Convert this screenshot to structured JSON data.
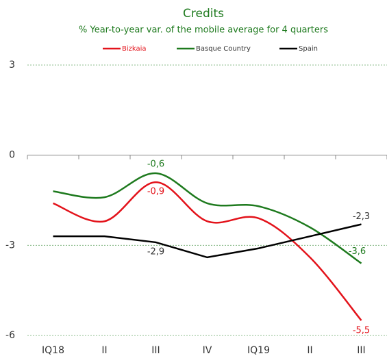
{
  "chart_data": {
    "type": "line",
    "title": "Credits",
    "subtitle": "% Year-to-year var. of the mobile average for 4 quarters",
    "categories": [
      "IQ18",
      "II",
      "III",
      "IV",
      "IQ19",
      "II",
      "III"
    ],
    "series": [
      {
        "name": "Bizkaia",
        "color": "#e3131b",
        "values": [
          -1.6,
          -2.2,
          -0.9,
          -2.2,
          -2.1,
          -3.4,
          -5.5
        ],
        "value_labels": [
          null,
          null,
          "-0,9",
          null,
          null,
          null,
          "-5,5"
        ]
      },
      {
        "name": "Basque Country",
        "color": "#1e7a1e",
        "values": [
          -1.2,
          -1.4,
          -0.6,
          -1.6,
          -1.7,
          -2.4,
          -3.6
        ],
        "value_labels": [
          null,
          null,
          "-0,6",
          null,
          null,
          null,
          "-3,6"
        ]
      },
      {
        "name": "Spain",
        "color": "#000000",
        "values": [
          -2.7,
          -2.7,
          -2.9,
          -3.4,
          -3.1,
          -2.7,
          -2.3
        ],
        "value_labels": [
          null,
          null,
          "-2,9",
          null,
          null,
          null,
          "-2,3"
        ]
      }
    ],
    "ylim": [
      -6,
      3
    ],
    "yticks": [
      3,
      0,
      -3,
      -6
    ],
    "grid": true,
    "legend": "top"
  }
}
